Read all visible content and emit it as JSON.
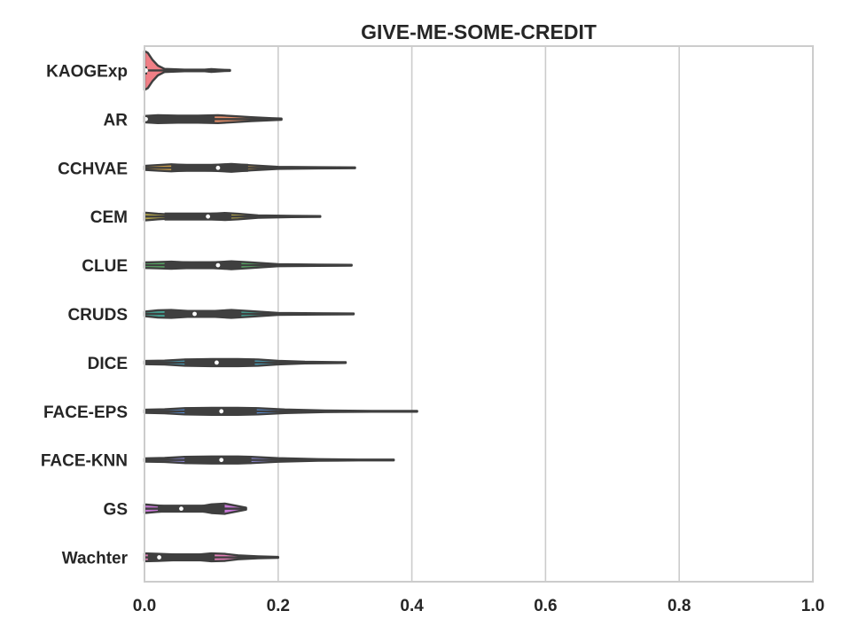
{
  "chart_data": {
    "type": "violin",
    "title": "GIVE-ME-SOME-CREDIT",
    "xlabel": "",
    "ylabel": "",
    "xlim": [
      0.0,
      1.0
    ],
    "x_ticks": [
      "0.0",
      "0.2",
      "0.4",
      "0.6",
      "0.8",
      "1.0"
    ],
    "x_tick_values": [
      0.0,
      0.2,
      0.4,
      0.6,
      0.8,
      1.0
    ],
    "grid": "vertical",
    "orientation": "horizontal",
    "categories": [
      "KAOGExp",
      "AR",
      "CCHVAE",
      "CEM",
      "CLUE",
      "CRUDS",
      "DICE",
      "FACE-EPS",
      "FACE-KNN",
      "GS",
      "Wachter"
    ],
    "series": [
      {
        "category": "KAOGExp",
        "color": "#f07f86",
        "min": 0.0,
        "q1": 0.0,
        "median": 0.002,
        "q3": 0.004,
        "max": 0.128,
        "density": [
          [
            0.0,
            1.0
          ],
          [
            0.005,
            0.9
          ],
          [
            0.012,
            0.55
          ],
          [
            0.02,
            0.25
          ],
          [
            0.03,
            0.08
          ],
          [
            0.06,
            0.04
          ],
          [
            0.09,
            0.04
          ],
          [
            0.1,
            0.07
          ],
          [
            0.11,
            0.05
          ],
          [
            0.12,
            0.03
          ],
          [
            0.128,
            0.02
          ]
        ]
      },
      {
        "category": "AR",
        "color": "#e9906a",
        "min": 0.0,
        "q1": 0.0,
        "median": 0.002,
        "q3": 0.105,
        "max": 0.205,
        "density": [
          [
            0.0,
            0.16
          ],
          [
            0.02,
            0.2
          ],
          [
            0.05,
            0.18
          ],
          [
            0.08,
            0.18
          ],
          [
            0.11,
            0.2
          ],
          [
            0.13,
            0.16
          ],
          [
            0.16,
            0.1
          ],
          [
            0.19,
            0.05
          ],
          [
            0.205,
            0.03
          ]
        ]
      },
      {
        "category": "CCHVAE",
        "color": "#c99c4a",
        "min": 0.0,
        "q1": 0.04,
        "median": 0.11,
        "q3": 0.155,
        "max": 0.315,
        "density": [
          [
            0.0,
            0.1
          ],
          [
            0.02,
            0.14
          ],
          [
            0.04,
            0.18
          ],
          [
            0.07,
            0.13
          ],
          [
            0.1,
            0.14
          ],
          [
            0.13,
            0.2
          ],
          [
            0.16,
            0.13
          ],
          [
            0.2,
            0.05
          ],
          [
            0.26,
            0.03
          ],
          [
            0.315,
            0.02
          ]
        ]
      },
      {
        "category": "CEM",
        "color": "#b3a44a",
        "min": 0.0,
        "q1": 0.03,
        "median": 0.095,
        "q3": 0.13,
        "max": 0.263,
        "density": [
          [
            0.0,
            0.2
          ],
          [
            0.02,
            0.14
          ],
          [
            0.04,
            0.1
          ],
          [
            0.07,
            0.12
          ],
          [
            0.1,
            0.14
          ],
          [
            0.12,
            0.18
          ],
          [
            0.14,
            0.14
          ],
          [
            0.17,
            0.06
          ],
          [
            0.22,
            0.03
          ],
          [
            0.263,
            0.02
          ]
        ]
      },
      {
        "category": "CLUE",
        "color": "#5db36a",
        "min": 0.0,
        "q1": 0.03,
        "median": 0.11,
        "q3": 0.145,
        "max": 0.31,
        "density": [
          [
            0.0,
            0.14
          ],
          [
            0.02,
            0.16
          ],
          [
            0.04,
            0.18
          ],
          [
            0.07,
            0.13
          ],
          [
            0.1,
            0.14
          ],
          [
            0.13,
            0.2
          ],
          [
            0.16,
            0.14
          ],
          [
            0.2,
            0.05
          ],
          [
            0.26,
            0.03
          ],
          [
            0.31,
            0.02
          ]
        ]
      },
      {
        "category": "CRUDS",
        "color": "#46b0a0",
        "min": 0.0,
        "q1": 0.03,
        "median": 0.075,
        "q3": 0.145,
        "max": 0.313,
        "density": [
          [
            0.0,
            0.12
          ],
          [
            0.02,
            0.18
          ],
          [
            0.04,
            0.2
          ],
          [
            0.07,
            0.14
          ],
          [
            0.1,
            0.14
          ],
          [
            0.13,
            0.2
          ],
          [
            0.16,
            0.14
          ],
          [
            0.2,
            0.05
          ],
          [
            0.26,
            0.03
          ],
          [
            0.313,
            0.02
          ]
        ]
      },
      {
        "category": "DICE",
        "color": "#4aa6c2",
        "min": 0.0,
        "q1": 0.06,
        "median": 0.108,
        "q3": 0.165,
        "max": 0.301,
        "density": [
          [
            0.0,
            0.08
          ],
          [
            0.03,
            0.1
          ],
          [
            0.06,
            0.16
          ],
          [
            0.1,
            0.18
          ],
          [
            0.14,
            0.18
          ],
          [
            0.17,
            0.16
          ],
          [
            0.2,
            0.09
          ],
          [
            0.24,
            0.04
          ],
          [
            0.301,
            0.02
          ]
        ]
      },
      {
        "category": "FACE-EPS",
        "color": "#5b8fd6",
        "min": 0.0,
        "q1": 0.06,
        "median": 0.115,
        "q3": 0.168,
        "max": 0.408,
        "density": [
          [
            0.0,
            0.08
          ],
          [
            0.03,
            0.1
          ],
          [
            0.06,
            0.16
          ],
          [
            0.1,
            0.18
          ],
          [
            0.14,
            0.18
          ],
          [
            0.17,
            0.16
          ],
          [
            0.21,
            0.09
          ],
          [
            0.27,
            0.04
          ],
          [
            0.34,
            0.02
          ],
          [
            0.408,
            0.02
          ]
        ]
      },
      {
        "category": "FACE-KNN",
        "color": "#8e8ad8",
        "min": 0.0,
        "q1": 0.06,
        "median": 0.115,
        "q3": 0.16,
        "max": 0.373,
        "density": [
          [
            0.0,
            0.08
          ],
          [
            0.03,
            0.1
          ],
          [
            0.06,
            0.16
          ],
          [
            0.1,
            0.18
          ],
          [
            0.14,
            0.18
          ],
          [
            0.16,
            0.16
          ],
          [
            0.2,
            0.09
          ],
          [
            0.26,
            0.04
          ],
          [
            0.32,
            0.02
          ],
          [
            0.373,
            0.02
          ]
        ]
      },
      {
        "category": "GS",
        "color": "#c979d8",
        "min": 0.0,
        "q1": 0.02,
        "median": 0.055,
        "q3": 0.12,
        "max": 0.152,
        "density": [
          [
            0.0,
            0.22
          ],
          [
            0.02,
            0.16
          ],
          [
            0.04,
            0.1
          ],
          [
            0.06,
            0.08
          ],
          [
            0.08,
            0.1
          ],
          [
            0.1,
            0.22
          ],
          [
            0.12,
            0.26
          ],
          [
            0.135,
            0.16
          ],
          [
            0.152,
            0.05
          ]
        ]
      },
      {
        "category": "Wachter",
        "color": "#e57fb8",
        "min": 0.0,
        "q1": 0.005,
        "median": 0.022,
        "q3": 0.105,
        "max": 0.2,
        "density": [
          [
            0.0,
            0.2
          ],
          [
            0.02,
            0.18
          ],
          [
            0.05,
            0.14
          ],
          [
            0.08,
            0.14
          ],
          [
            0.1,
            0.2
          ],
          [
            0.12,
            0.18
          ],
          [
            0.14,
            0.1
          ],
          [
            0.17,
            0.05
          ],
          [
            0.2,
            0.02
          ]
        ]
      }
    ]
  }
}
